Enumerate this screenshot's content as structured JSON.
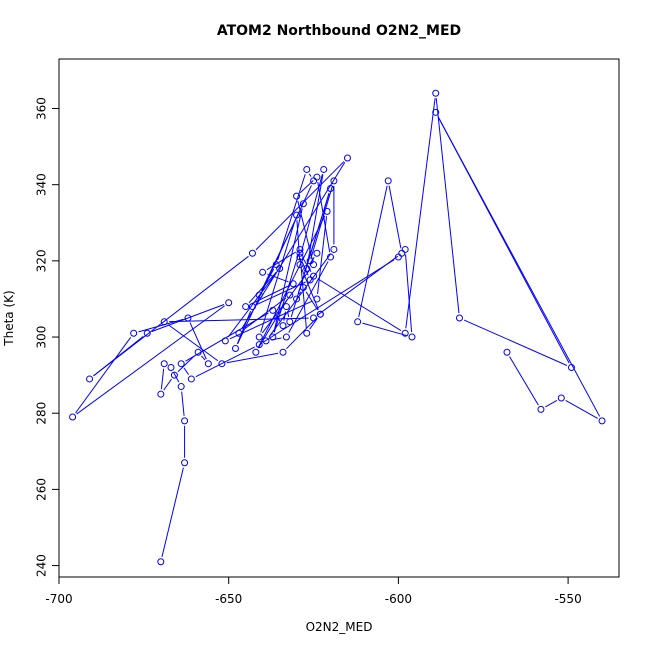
{
  "chart_data": {
    "type": "scatter",
    "title": "ATOM2 Northbound O2N2_MED",
    "xlabel": "O2N2_MED",
    "ylabel": "Theta (K)",
    "xlim": [
      -700,
      -535
    ],
    "ylim": [
      237,
      373
    ],
    "xticks": [
      -700,
      -650,
      -600,
      -550
    ],
    "xtick_labels": [
      "-700",
      "-650",
      "-600",
      "-550"
    ],
    "yticks": [
      240,
      260,
      280,
      300,
      320,
      340,
      360
    ],
    "ytick_labels": [
      "240",
      "260",
      "280",
      "300",
      "320",
      "340",
      "360"
    ],
    "grid": false,
    "legend": "none",
    "color": "#0000ff",
    "series": [
      {
        "style": "points-and-lines",
        "x": [
          -670,
          -663,
          -663,
          -664,
          -667,
          -669,
          -670,
          -666,
          -659,
          -656,
          -662,
          -678,
          -696,
          -650,
          -674,
          -691,
          -643,
          -615,
          -647,
          -632,
          -642,
          -621,
          -624,
          -651,
          -635,
          -645,
          -631,
          -640,
          -629,
          -637,
          -628,
          -641,
          -636,
          -627,
          -625,
          -648,
          -643,
          -626,
          -629,
          -622,
          -627,
          -624,
          -626,
          -619,
          -619,
          -639,
          -633,
          -620,
          -624,
          -630,
          -625,
          -641,
          -630,
          -629,
          -623,
          -634,
          -652,
          -669,
          -625,
          -599,
          -603,
          -612,
          -596,
          -598,
          -600,
          -641,
          -661,
          -664,
          -637,
          -634,
          -633,
          -632,
          -620,
          -630,
          -628,
          -623,
          -627,
          -629,
          -625,
          -598,
          -589,
          -582,
          -549,
          -589,
          -540,
          -552,
          -558,
          -568
        ],
        "y": [
          241,
          267,
          278,
          287,
          292,
          293,
          285,
          290,
          296,
          293,
          305,
          301,
          279,
          309,
          301,
          289,
          322,
          347,
          301,
          311,
          296,
          333,
          310,
          299,
          318,
          308,
          314,
          317,
          323,
          300,
          335,
          311,
          319,
          344,
          341,
          297,
          308,
          315,
          321,
          344,
          318,
          322,
          320,
          341,
          323,
          299,
          300,
          321,
          342,
          337,
          319,
          300,
          332,
          319,
          306,
          296,
          293,
          304,
          305,
          322,
          341,
          304,
          300,
          323,
          321,
          298,
          289,
          293,
          307,
          303,
          308,
          304,
          339,
          310,
          313,
          306,
          301,
          322,
          316,
          301,
          364,
          305,
          292,
          359,
          278,
          284,
          281,
          296
        ]
      }
    ]
  }
}
